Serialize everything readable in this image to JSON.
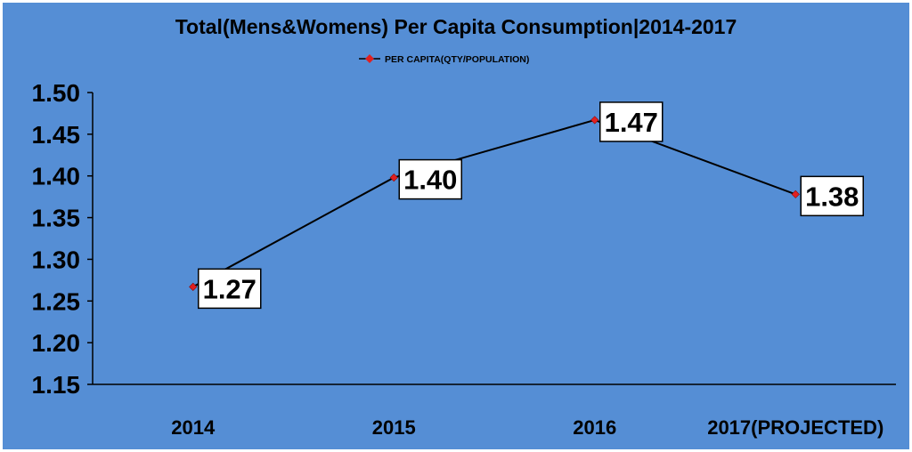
{
  "colors": {
    "background": "#558ed5",
    "border": "#ffffff",
    "line": "#000000",
    "marker": "#e02020",
    "label_fill": "#ffffff",
    "text": "#000000"
  },
  "chart_data": {
    "type": "line",
    "title": "Total(Mens&Womens) Per Capita Consumption|2014-2017",
    "xlabel": "",
    "ylabel": "",
    "categories": [
      "2014",
      "2015",
      "2016",
      "2017(PROJECTED)"
    ],
    "series": [
      {
        "name": "PER CAPITA(QTY/POPULATION)",
        "values": [
          1.267,
          1.398,
          1.467,
          1.378
        ],
        "labels": [
          "1.27",
          "1.40",
          "1.47",
          "1.38"
        ]
      }
    ],
    "ylim": [
      1.15,
      1.5
    ],
    "yticks": [
      "1.50",
      "1.45",
      "1.40",
      "1.35",
      "1.30",
      "1.25",
      "1.20",
      "1.15"
    ],
    "grid": false,
    "legend": "top-center"
  }
}
